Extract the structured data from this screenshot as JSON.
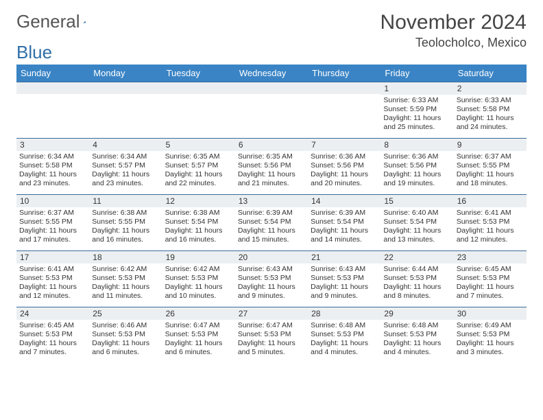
{
  "logo": {
    "text1": "General",
    "text2": "Blue"
  },
  "title": "November 2024",
  "location": "Teolocholco, Mexico",
  "columns": [
    "Sunday",
    "Monday",
    "Tuesday",
    "Wednesday",
    "Thursday",
    "Friday",
    "Saturday"
  ],
  "colors": {
    "header_bg": "#3a84c5",
    "header_text": "#ffffff",
    "row_border": "#3a6a98",
    "daynum_bg": "#eceff2",
    "logo_blue": "#2f6fa7"
  },
  "weeks": [
    [
      null,
      null,
      null,
      null,
      null,
      {
        "n": "1",
        "sunrise": "6:33 AM",
        "sunset": "5:59 PM",
        "daylight": "11 hours and 25 minutes."
      },
      {
        "n": "2",
        "sunrise": "6:33 AM",
        "sunset": "5:58 PM",
        "daylight": "11 hours and 24 minutes."
      }
    ],
    [
      {
        "n": "3",
        "sunrise": "6:34 AM",
        "sunset": "5:58 PM",
        "daylight": "11 hours and 23 minutes."
      },
      {
        "n": "4",
        "sunrise": "6:34 AM",
        "sunset": "5:57 PM",
        "daylight": "11 hours and 23 minutes."
      },
      {
        "n": "5",
        "sunrise": "6:35 AM",
        "sunset": "5:57 PM",
        "daylight": "11 hours and 22 minutes."
      },
      {
        "n": "6",
        "sunrise": "6:35 AM",
        "sunset": "5:56 PM",
        "daylight": "11 hours and 21 minutes."
      },
      {
        "n": "7",
        "sunrise": "6:36 AM",
        "sunset": "5:56 PM",
        "daylight": "11 hours and 20 minutes."
      },
      {
        "n": "8",
        "sunrise": "6:36 AM",
        "sunset": "5:56 PM",
        "daylight": "11 hours and 19 minutes."
      },
      {
        "n": "9",
        "sunrise": "6:37 AM",
        "sunset": "5:55 PM",
        "daylight": "11 hours and 18 minutes."
      }
    ],
    [
      {
        "n": "10",
        "sunrise": "6:37 AM",
        "sunset": "5:55 PM",
        "daylight": "11 hours and 17 minutes."
      },
      {
        "n": "11",
        "sunrise": "6:38 AM",
        "sunset": "5:55 PM",
        "daylight": "11 hours and 16 minutes."
      },
      {
        "n": "12",
        "sunrise": "6:38 AM",
        "sunset": "5:54 PM",
        "daylight": "11 hours and 16 minutes."
      },
      {
        "n": "13",
        "sunrise": "6:39 AM",
        "sunset": "5:54 PM",
        "daylight": "11 hours and 15 minutes."
      },
      {
        "n": "14",
        "sunrise": "6:39 AM",
        "sunset": "5:54 PM",
        "daylight": "11 hours and 14 minutes."
      },
      {
        "n": "15",
        "sunrise": "6:40 AM",
        "sunset": "5:54 PM",
        "daylight": "11 hours and 13 minutes."
      },
      {
        "n": "16",
        "sunrise": "6:41 AM",
        "sunset": "5:53 PM",
        "daylight": "11 hours and 12 minutes."
      }
    ],
    [
      {
        "n": "17",
        "sunrise": "6:41 AM",
        "sunset": "5:53 PM",
        "daylight": "11 hours and 12 minutes."
      },
      {
        "n": "18",
        "sunrise": "6:42 AM",
        "sunset": "5:53 PM",
        "daylight": "11 hours and 11 minutes."
      },
      {
        "n": "19",
        "sunrise": "6:42 AM",
        "sunset": "5:53 PM",
        "daylight": "11 hours and 10 minutes."
      },
      {
        "n": "20",
        "sunrise": "6:43 AM",
        "sunset": "5:53 PM",
        "daylight": "11 hours and 9 minutes."
      },
      {
        "n": "21",
        "sunrise": "6:43 AM",
        "sunset": "5:53 PM",
        "daylight": "11 hours and 9 minutes."
      },
      {
        "n": "22",
        "sunrise": "6:44 AM",
        "sunset": "5:53 PM",
        "daylight": "11 hours and 8 minutes."
      },
      {
        "n": "23",
        "sunrise": "6:45 AM",
        "sunset": "5:53 PM",
        "daylight": "11 hours and 7 minutes."
      }
    ],
    [
      {
        "n": "24",
        "sunrise": "6:45 AM",
        "sunset": "5:53 PM",
        "daylight": "11 hours and 7 minutes."
      },
      {
        "n": "25",
        "sunrise": "6:46 AM",
        "sunset": "5:53 PM",
        "daylight": "11 hours and 6 minutes."
      },
      {
        "n": "26",
        "sunrise": "6:47 AM",
        "sunset": "5:53 PM",
        "daylight": "11 hours and 6 minutes."
      },
      {
        "n": "27",
        "sunrise": "6:47 AM",
        "sunset": "5:53 PM",
        "daylight": "11 hours and 5 minutes."
      },
      {
        "n": "28",
        "sunrise": "6:48 AM",
        "sunset": "5:53 PM",
        "daylight": "11 hours and 4 minutes."
      },
      {
        "n": "29",
        "sunrise": "6:48 AM",
        "sunset": "5:53 PM",
        "daylight": "11 hours and 4 minutes."
      },
      {
        "n": "30",
        "sunrise": "6:49 AM",
        "sunset": "5:53 PM",
        "daylight": "11 hours and 3 minutes."
      }
    ]
  ],
  "labels": {
    "sunrise": "Sunrise:",
    "sunset": "Sunset:",
    "daylight": "Daylight:"
  }
}
